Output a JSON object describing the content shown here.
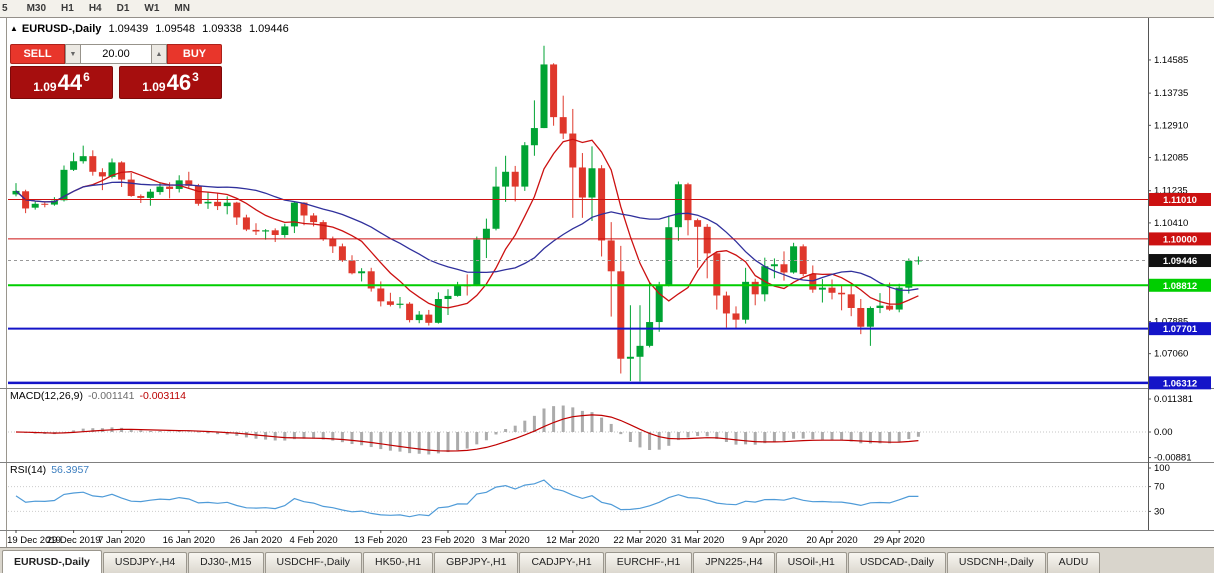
{
  "toolbar": {
    "timeframes": [
      "5",
      "M30",
      "H1",
      "H4",
      "D1",
      "W1",
      "MN"
    ]
  },
  "header": {
    "marker": "▲",
    "title": "EURUSD-,Daily",
    "open": "1.09439",
    "high": "1.09548",
    "low": "1.09338",
    "close": "1.09446"
  },
  "trade_panel": {
    "sell_label": "SELL",
    "buy_label": "BUY",
    "volume": "20.00",
    "bid": {
      "base": "1.09",
      "pips": "44",
      "pipette": "6"
    },
    "ask": {
      "base": "1.09",
      "pips": "46",
      "pipette": "3"
    }
  },
  "chart_data": {
    "type": "candlestick",
    "symbol": "EURUSD-",
    "timeframe": "Daily",
    "grid": false,
    "colors": {
      "bull": "#00a333",
      "bear": "#df382c",
      "background": "#ffffff"
    },
    "y_axis": {
      "min": 1.0618,
      "max": 1.1566,
      "ticks": [
        "1.14585",
        "1.13735",
        "1.12910",
        "1.12085",
        "1.11235",
        "1.10410",
        "1.07885",
        "1.07060"
      ]
    },
    "x_axis_labels": [
      {
        "label": "19 Dec 2019",
        "index": 0
      },
      {
        "label": "29 Dec 2019",
        "index": 6
      },
      {
        "label": "7 Jan 2020",
        "index": 11
      },
      {
        "label": "16 Jan 2020",
        "index": 18
      },
      {
        "label": "26 Jan 2020",
        "index": 25
      },
      {
        "label": "4 Feb 2020",
        "index": 31
      },
      {
        "label": "13 Feb 2020",
        "index": 38
      },
      {
        "label": "23 Feb 2020",
        "index": 45
      },
      {
        "label": "3 Mar 2020",
        "index": 51
      },
      {
        "label": "12 Mar 2020",
        "index": 58
      },
      {
        "label": "22 Mar 2020",
        "index": 65
      },
      {
        "label": "31 Mar 2020",
        "index": 71
      },
      {
        "label": "9 Apr 2020",
        "index": 78
      },
      {
        "label": "20 Apr 2020",
        "index": 85
      },
      {
        "label": "29 Apr 2020",
        "index": 92
      }
    ],
    "candles": [
      [
        1.1114,
        1.1143,
        1.1109,
        1.1123
      ],
      [
        1.1122,
        1.1126,
        1.1066,
        1.1078
      ],
      [
        1.108,
        1.1096,
        1.1075,
        1.109
      ],
      [
        1.109,
        1.1096,
        1.1081,
        1.1088
      ],
      [
        1.1088,
        1.1107,
        1.1085,
        1.1098
      ],
      [
        1.1099,
        1.1188,
        1.1096,
        1.1177
      ],
      [
        1.1177,
        1.1221,
        1.1174,
        1.1199
      ],
      [
        1.1199,
        1.1239,
        1.1193,
        1.1212
      ],
      [
        1.1212,
        1.1227,
        1.1162,
        1.1172
      ],
      [
        1.1171,
        1.1181,
        1.1125,
        1.116
      ],
      [
        1.1159,
        1.1206,
        1.1155,
        1.1196
      ],
      [
        1.1196,
        1.1199,
        1.1133,
        1.1152
      ],
      [
        1.1152,
        1.1169,
        1.1108,
        1.111
      ],
      [
        1.111,
        1.1114,
        1.1092,
        1.1105
      ],
      [
        1.1105,
        1.1128,
        1.1085,
        1.1121
      ],
      [
        1.112,
        1.1145,
        1.1113,
        1.1134
      ],
      [
        1.1134,
        1.1145,
        1.1104,
        1.1128
      ],
      [
        1.1128,
        1.1163,
        1.1119,
        1.115
      ],
      [
        1.115,
        1.1172,
        1.1128,
        1.1136
      ],
      [
        1.1136,
        1.1141,
        1.1085,
        1.109
      ],
      [
        1.1091,
        1.1119,
        1.1077,
        1.1095
      ],
      [
        1.1095,
        1.1118,
        1.1074,
        1.1084
      ],
      [
        1.1084,
        1.1109,
        1.1063,
        1.1093
      ],
      [
        1.1093,
        1.1095,
        1.1036,
        1.1055
      ],
      [
        1.1055,
        1.1062,
        1.102,
        1.1024
      ],
      [
        1.1023,
        1.104,
        1.101,
        1.1019
      ],
      [
        1.1019,
        1.1025,
        1.0998,
        1.1022
      ],
      [
        1.1022,
        1.1027,
        1.0992,
        1.101
      ],
      [
        1.101,
        1.1039,
        1.1003,
        1.1032
      ],
      [
        1.1032,
        1.1096,
        1.1015,
        1.1093
      ],
      [
        1.1093,
        1.1094,
        1.1035,
        1.106
      ],
      [
        1.106,
        1.1066,
        1.1032,
        1.1043
      ],
      [
        1.1043,
        1.1048,
        1.0995,
        1.1
      ],
      [
        1.1,
        1.1006,
        1.0964,
        1.0981
      ],
      [
        1.0981,
        1.0988,
        1.0941,
        1.0945
      ],
      [
        1.0945,
        1.0958,
        1.0909,
        1.0912
      ],
      [
        1.0912,
        1.0925,
        1.0891,
        1.0917
      ],
      [
        1.0917,
        1.0926,
        1.0865,
        1.0873
      ],
      [
        1.0873,
        1.0891,
        1.0827,
        1.084
      ],
      [
        1.084,
        1.0862,
        1.0827,
        1.0831
      ],
      [
        1.0831,
        1.0851,
        1.0822,
        1.0834
      ],
      [
        1.0834,
        1.0838,
        1.0786,
        1.0792
      ],
      [
        1.0792,
        1.0815,
        1.0784,
        1.0806
      ],
      [
        1.0806,
        1.0818,
        1.0778,
        1.0785
      ],
      [
        1.0785,
        1.0863,
        1.0783,
        1.0846
      ],
      [
        1.0846,
        1.0871,
        1.0805,
        1.0854
      ],
      [
        1.0854,
        1.089,
        1.0852,
        1.0881
      ],
      [
        1.0881,
        1.0909,
        1.0855,
        1.088
      ],
      [
        1.088,
        1.1006,
        1.0879,
        1.0998
      ],
      [
        1.0998,
        1.1052,
        1.0951,
        1.1026
      ],
      [
        1.1026,
        1.1185,
        1.1022,
        1.1134
      ],
      [
        1.1134,
        1.1213,
        1.1095,
        1.1172
      ],
      [
        1.1172,
        1.1187,
        1.1096,
        1.1134
      ],
      [
        1.1134,
        1.1248,
        1.1123,
        1.124
      ],
      [
        1.124,
        1.1355,
        1.1213,
        1.1284
      ],
      [
        1.1284,
        1.1495,
        1.1284,
        1.1447
      ],
      [
        1.1447,
        1.145,
        1.129,
        1.1312
      ],
      [
        1.1312,
        1.1367,
        1.1256,
        1.127
      ],
      [
        1.127,
        1.1333,
        1.1054,
        1.1183
      ],
      [
        1.1183,
        1.122,
        1.1054,
        1.1106
      ],
      [
        1.1106,
        1.1237,
        1.1046,
        1.1181
      ],
      [
        1.1181,
        1.1189,
        1.0955,
        1.0996
      ],
      [
        1.0996,
        1.1043,
        1.0801,
        1.0917
      ],
      [
        1.0917,
        1.0982,
        1.0655,
        1.0693
      ],
      [
        1.0693,
        1.083,
        1.0636,
        1.0698
      ],
      [
        1.0698,
        1.083,
        1.0635,
        1.0726
      ],
      [
        1.0726,
        1.0889,
        1.0722,
        1.0787
      ],
      [
        1.0787,
        1.089,
        1.0762,
        1.0882
      ],
      [
        1.0882,
        1.106,
        1.0878,
        1.103
      ],
      [
        1.103,
        1.1147,
        1.0995,
        1.114
      ],
      [
        1.114,
        1.1144,
        1.1009,
        1.1048
      ],
      [
        1.1048,
        1.1052,
        1.0926,
        1.1031
      ],
      [
        1.1031,
        1.1038,
        1.0899,
        1.0963
      ],
      [
        1.0963,
        1.0966,
        1.0819,
        1.0855
      ],
      [
        1.0855,
        1.0865,
        1.0773,
        1.0809
      ],
      [
        1.0809,
        1.0827,
        1.0768,
        1.0793
      ],
      [
        1.0793,
        1.0926,
        1.0783,
        1.089
      ],
      [
        1.089,
        1.0898,
        1.083,
        1.0858
      ],
      [
        1.0858,
        1.0952,
        1.084,
        1.093
      ],
      [
        1.093,
        1.095,
        1.0899,
        1.0935
      ],
      [
        1.0935,
        1.0968,
        1.0893,
        1.0914
      ],
      [
        1.0914,
        1.099,
        1.0911,
        1.0981
      ],
      [
        1.0981,
        1.0986,
        1.0905,
        1.091
      ],
      [
        1.091,
        1.0932,
        1.0862,
        1.087
      ],
      [
        1.087,
        1.0897,
        1.0837,
        1.0875
      ],
      [
        1.0875,
        1.0896,
        1.0845,
        1.0862
      ],
      [
        1.0862,
        1.088,
        1.0817,
        1.0858
      ],
      [
        1.0858,
        1.0885,
        1.0802,
        1.0823
      ],
      [
        1.0823,
        1.0846,
        1.0756,
        1.0775
      ],
      [
        1.0775,
        1.0827,
        1.0726,
        1.0823
      ],
      [
        1.0823,
        1.0861,
        1.081,
        1.0829
      ],
      [
        1.0829,
        1.0888,
        1.0816,
        1.0819
      ],
      [
        1.0819,
        1.0885,
        1.0812,
        1.0875
      ],
      [
        1.0875,
        1.095,
        1.086,
        1.0944
      ],
      [
        1.0944,
        1.0955,
        1.0934,
        1.0945
      ]
    ],
    "moving_averages": [
      {
        "period": 8,
        "color": "#cc1111"
      },
      {
        "period": 21,
        "color": "#30309c"
      }
    ],
    "levels": [
      {
        "label": "1.11010",
        "price": 1.1101,
        "color": "#cc1111",
        "width": 1
      },
      {
        "label": "1.10000",
        "price": 1.1,
        "color": "#cc1111",
        "width": 1
      },
      {
        "label": "1.08812",
        "price": 1.08812,
        "color": "#00ce00",
        "width": 2
      },
      {
        "label": "1.07701",
        "price": 1.07701,
        "color": "#1414c8",
        "width": 2
      },
      {
        "label": "1.06312",
        "price": 1.06312,
        "color": "#1414c8",
        "width": 2.5
      }
    ],
    "current_price": {
      "label": "1.09446",
      "value": 1.09446,
      "marker_bg": "#111111"
    },
    "macd": {
      "name": "MACD(12,26,9)",
      "value_main": "-0.001141",
      "value_signal": "-0.003114",
      "fast": 12,
      "slow": 26,
      "signal_period": 9,
      "histogram_color": "#ababab",
      "signal_color": "#c00000",
      "axis": [
        {
          "label": "0.011381",
          "value": 0.011381
        },
        {
          "label": "0.00",
          "value": 0
        },
        {
          "label": "-0.00881",
          "value": -0.00881
        }
      ]
    },
    "rsi": {
      "name": "RSI(14)",
      "value": "56.3957",
      "period": 14,
      "color": "#4f9bd8",
      "axis": [
        {
          "label": "100",
          "value": 100
        },
        {
          "label": "70",
          "value": 70
        },
        {
          "label": "30",
          "value": 30
        }
      ]
    }
  },
  "tabs": [
    {
      "label": "EURUSD-,Daily",
      "active": true
    },
    {
      "label": "USDJPY-,H4"
    },
    {
      "label": "DJ30-,M15"
    },
    {
      "label": "USDCHF-,Daily"
    },
    {
      "label": "HK50-,H1"
    },
    {
      "label": "GBPJPY-,H1"
    },
    {
      "label": "CADJPY-,H1"
    },
    {
      "label": "EURCHF-,H1"
    },
    {
      "label": "JPN225-,H4"
    },
    {
      "label": "USOil-,H1"
    },
    {
      "label": "USDCAD-,Daily"
    },
    {
      "label": "USDCNH-,Daily"
    },
    {
      "label": "AUDU"
    }
  ]
}
